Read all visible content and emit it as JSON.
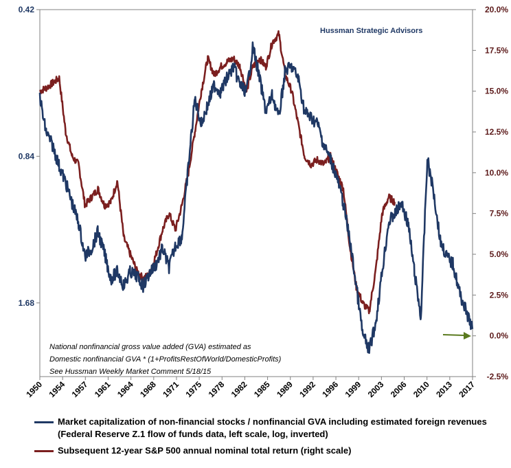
{
  "colors": {
    "blue": "#1f3864",
    "red": "#7b1f1f",
    "arrow": "#5a7a1e"
  },
  "credit": "Hussman Strategic Advisors",
  "note_lines": [
    "National nonfinancial gross value added (GVA) estimated as",
    "Domestic nonfinancial GVA * (1+ProfitsRestOfWorld/DomesticProfits)",
    "See Hussman Weekly Market Comment 5/18/15"
  ],
  "legend": {
    "blue_line1": "Market capitalization of non-financial stocks / nonfinancial GVA including estimated foreign revenues",
    "blue_line2": "(Federal Reserve Z.1 flow of funds data, left scale, log, inverted)",
    "red": "Subsequent 12-year S&P 500 annual nominal total return (right scale)"
  },
  "chart_data": {
    "type": "line",
    "title": "",
    "x_tick_labels": [
      "1950",
      "1954",
      "1957",
      "1961",
      "1964",
      "1968",
      "1971",
      "1975",
      "1978",
      "1982",
      "1985",
      "1989",
      "1992",
      "1996",
      "1999",
      "2003",
      "2006",
      "2010",
      "2013",
      "2017"
    ],
    "xlim": [
      1950,
      2017
    ],
    "left_axis": {
      "ticks": [
        0.42,
        0.84,
        1.68
      ],
      "scale": "log",
      "inverted": true,
      "ylim": [
        0.42,
        2.38
      ]
    },
    "right_axis": {
      "ticks": [
        "20.0%",
        "17.5%",
        "15.0%",
        "12.5%",
        "10.0%",
        "7.5%",
        "5.0%",
        "2.5%",
        "0.0%",
        "-2.5%"
      ],
      "ylim": [
        -2.5,
        20.0
      ]
    },
    "series": [
      {
        "name": "Market capitalization of non-financial stocks / nonfinancial GVA including estimated foreign revenues",
        "axis": "left",
        "x": [
          1950.0,
          1950.5,
          1951,
          1952,
          1953,
          1954,
          1955,
          1956,
          1957,
          1958,
          1959,
          1960,
          1961,
          1962,
          1963,
          1964,
          1965,
          1966,
          1967,
          1968,
          1969,
          1970,
          1971,
          1972,
          1973,
          1974,
          1975,
          1976,
          1977,
          1978,
          1979,
          1980,
          1981,
          1982,
          1983,
          1984,
          1985,
          1986,
          1987,
          1988,
          1989,
          1990,
          1991,
          1992,
          1993,
          1994,
          1995,
          1996,
          1997,
          1998,
          1999,
          2000,
          2001,
          2002,
          2003,
          2004,
          2005,
          2006,
          2007,
          2008,
          2009,
          2010,
          2011,
          2012,
          2013,
          2014,
          2015,
          2016,
          2017
        ],
        "values": [
          0.63,
          0.7,
          0.75,
          0.8,
          0.88,
          0.95,
          1.05,
          1.15,
          1.35,
          1.3,
          1.2,
          1.33,
          1.5,
          1.45,
          1.55,
          1.45,
          1.48,
          1.55,
          1.46,
          1.4,
          1.3,
          1.42,
          1.28,
          1.23,
          0.88,
          0.64,
          0.72,
          0.66,
          0.6,
          0.62,
          0.58,
          0.55,
          0.6,
          0.62,
          0.5,
          0.58,
          0.68,
          0.63,
          0.7,
          0.56,
          0.55,
          0.58,
          0.68,
          0.7,
          0.72,
          0.8,
          0.85,
          0.93,
          1.05,
          1.25,
          1.55,
          1.95,
          2.1,
          1.85,
          1.45,
          1.15,
          1.1,
          1.05,
          1.15,
          1.45,
          1.8,
          0.85,
          1.0,
          1.25,
          1.35,
          1.4,
          1.6,
          1.75,
          1.9
        ]
      },
      {
        "name": "Subsequent 12-year S&P 500 annual nominal total return (right scale)",
        "axis": "right",
        "x": [
          1950.0,
          1951,
          1952,
          1953,
          1954,
          1955,
          1956,
          1957,
          1958,
          1959,
          1960,
          1961,
          1962,
          1963,
          1964,
          1965,
          1966,
          1967,
          1968,
          1969,
          1970,
          1971,
          1972,
          1973,
          1974,
          1975,
          1976,
          1977,
          1978,
          1979,
          1980,
          1981,
          1982,
          1983,
          1984,
          1985,
          1986,
          1987,
          1988,
          1989,
          1990,
          1991,
          1992,
          1993,
          1994,
          1995,
          1996,
          1997,
          1998,
          1999,
          2000,
          2001,
          2002,
          2003,
          2004,
          2005
        ],
        "values": [
          15.0,
          15.2,
          15.5,
          15.8,
          12.5,
          11.0,
          10.5,
          8.0,
          8.5,
          9.0,
          8.0,
          8.2,
          9.5,
          6.0,
          5.0,
          4.0,
          3.5,
          3.8,
          5.0,
          6.5,
          7.5,
          6.5,
          8.0,
          10.0,
          12.5,
          15.0,
          17.0,
          16.0,
          16.5,
          16.8,
          17.0,
          16.5,
          15.0,
          16.5,
          17.0,
          16.5,
          18.0,
          18.5,
          16.0,
          15.0,
          13.0,
          11.0,
          10.5,
          10.8,
          10.5,
          11.0,
          10.0,
          9.0,
          5.5,
          3.0,
          2.0,
          1.5,
          4.0,
          7.5,
          8.5,
          8.2
        ]
      }
    ]
  }
}
